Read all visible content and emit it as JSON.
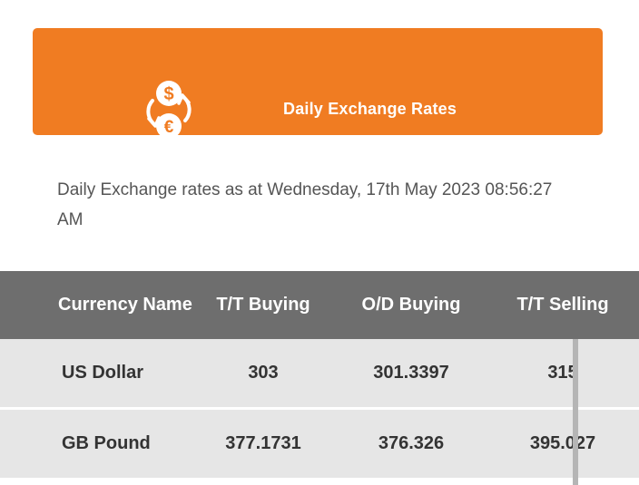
{
  "banner": {
    "title": "Daily Exchange Rates",
    "icon": "currency-exchange-icon",
    "color": "#f07c22"
  },
  "rates_date_text": "Daily Exchange rates as at Wednesday, 17th May 2023 08:56:27 AM",
  "table": {
    "header_color": "#6e6e6e",
    "row_color": "#e6e6e6",
    "columns": [
      "Currency Name",
      "T/T Buying",
      "O/D Buying",
      "T/T Selling"
    ],
    "rows": [
      [
        "US Dollar",
        "303",
        "301.3397",
        "315"
      ],
      [
        "GB Pound",
        "377.1731",
        "376.326",
        "395.027"
      ]
    ]
  }
}
